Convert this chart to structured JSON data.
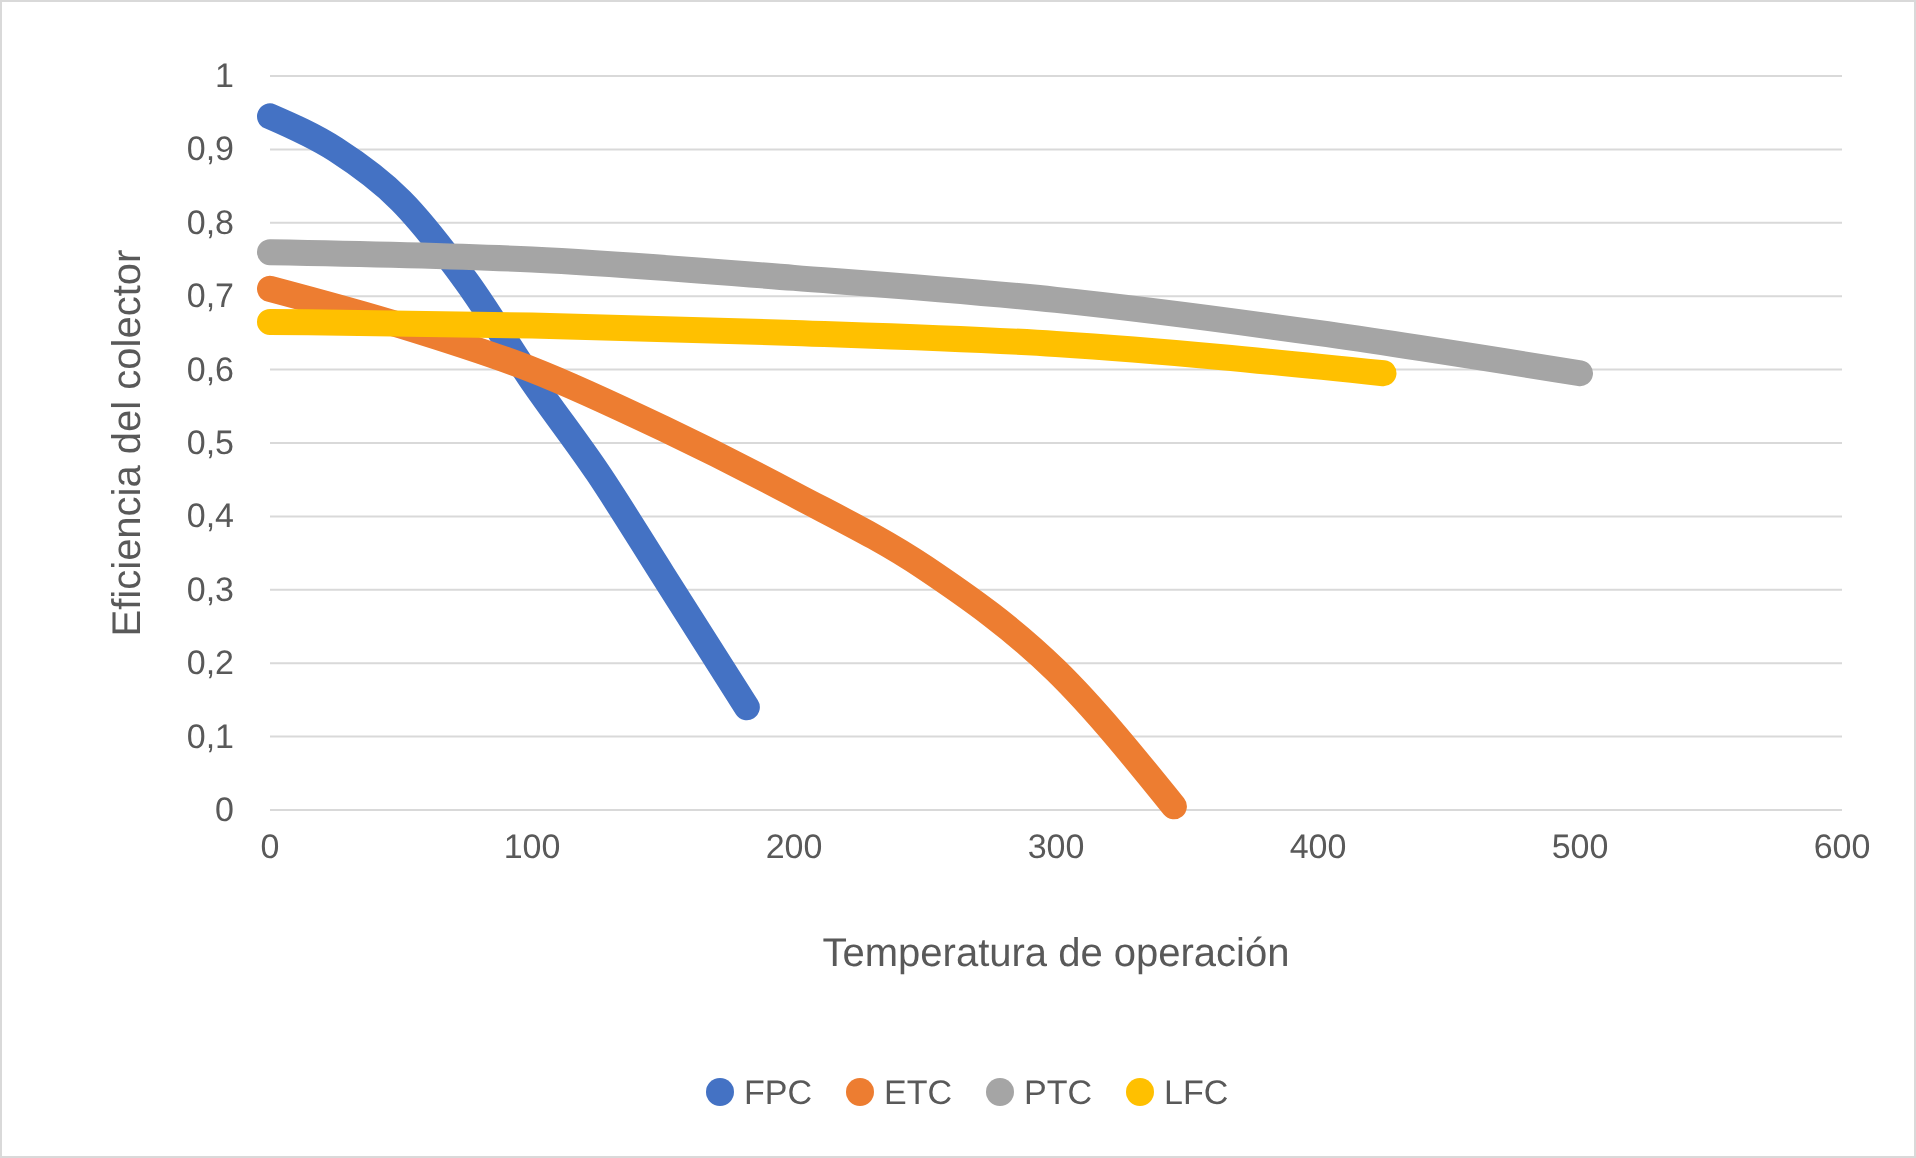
{
  "chart_data": {
    "type": "line",
    "xlabel": "Temperatura de operación",
    "ylabel": "Eficiencia del colector",
    "xlim": [
      0,
      600
    ],
    "xticks": [
      0,
      100,
      200,
      300,
      400,
      500,
      600
    ],
    "ylim": [
      0,
      1
    ],
    "yticks": [
      0,
      {
        "value": 0.1,
        "label": "0,1"
      },
      {
        "value": 0.2,
        "label": "0,2"
      },
      {
        "value": 0.3,
        "label": "0,3"
      },
      {
        "value": 0.4,
        "label": "0,4"
      },
      {
        "value": 0.5,
        "label": "0,5"
      },
      {
        "value": 0.6,
        "label": "0,6"
      },
      {
        "value": 0.7,
        "label": "0,7"
      },
      {
        "value": 0.8,
        "label": "0,8"
      },
      {
        "value": 0.9,
        "label": "0,9"
      },
      1
    ],
    "grid": "y",
    "legend": "bottom",
    "line_style": "solid",
    "series": [
      {
        "name": "FPC",
        "color": "#4472c4",
        "x": [
          0,
          25,
          50,
          75,
          100,
          125,
          150,
          182
        ],
        "values": [
          0.945,
          0.9,
          0.83,
          0.72,
          0.585,
          0.46,
          0.32,
          0.14
        ]
      },
      {
        "name": "ETC",
        "color": "#ed7d31",
        "x": [
          0,
          50,
          100,
          150,
          200,
          250,
          300,
          345
        ],
        "values": [
          0.71,
          0.66,
          0.6,
          0.52,
          0.43,
          0.33,
          0.19,
          0.005
        ]
      },
      {
        "name": "PTC",
        "color": "#a5a5a5",
        "x": [
          0,
          100,
          200,
          300,
          400,
          500
        ],
        "values": [
          0.76,
          0.75,
          0.725,
          0.695,
          0.65,
          0.595
        ]
      },
      {
        "name": "LFC",
        "color": "#ffc000",
        "x": [
          0,
          100,
          200,
          300,
          425
        ],
        "values": [
          0.665,
          0.66,
          0.65,
          0.635,
          0.595
        ]
      }
    ]
  }
}
